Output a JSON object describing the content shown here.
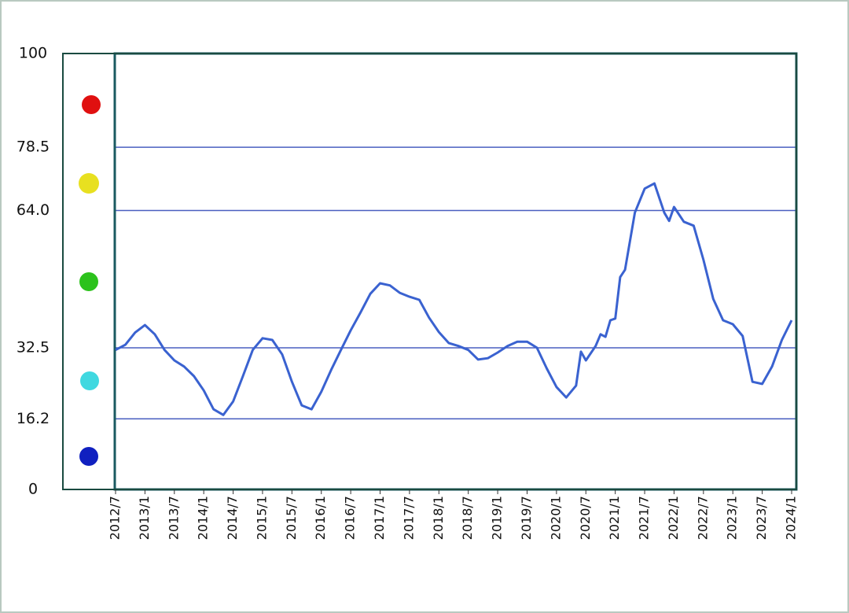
{
  "chart_data": {
    "type": "line",
    "x": [
      "2012/7",
      "2012/9",
      "2012/11",
      "2013/1",
      "2013/3",
      "2013/5",
      "2013/7",
      "2013/9",
      "2013/11",
      "2014/1",
      "2014/3",
      "2014/5",
      "2014/7",
      "2014/9",
      "2014/11",
      "2015/1",
      "2015/3",
      "2015/5",
      "2015/7",
      "2015/9",
      "2015/11",
      "2016/1",
      "2016/3",
      "2016/5",
      "2016/7",
      "2016/9",
      "2016/11",
      "2017/1",
      "2017/3",
      "2017/5",
      "2017/7",
      "2017/9",
      "2017/11",
      "2018/1",
      "2018/3",
      "2018/5",
      "2018/7",
      "2018/9",
      "2018/11",
      "2019/1",
      "2019/3",
      "2019/5",
      "2019/7",
      "2019/9",
      "2019/11",
      "2020/1",
      "2020/3",
      "2020/5",
      "2020/6",
      "2020/7",
      "2020/9",
      "2020/10",
      "2020/11",
      "2020/12",
      "2021/1",
      "2021/2",
      "2021/3",
      "2021/5",
      "2021/7",
      "2021/9",
      "2021/11",
      "2021/12",
      "2022/1",
      "2022/3",
      "2022/5",
      "2022/7",
      "2022/9",
      "2022/11",
      "2023/1",
      "2023/3",
      "2023/5",
      "2023/7",
      "2023/9",
      "2023/11",
      "2024/1"
    ],
    "series": [
      {
        "color": "#3a62d0",
        "values": [
          32,
          33.2,
          36,
          37.7,
          35.6,
          32,
          29.6,
          28.2,
          26,
          22.7,
          18.4,
          17.1,
          20.2,
          26,
          32,
          34.7,
          34.3,
          31,
          24.7,
          19.3,
          18.4,
          22.4,
          27.4,
          32,
          36.5,
          40.6,
          44.9,
          47.3,
          46.8,
          45.1,
          44.2,
          43.5,
          39.4,
          36.1,
          33.6,
          32.9,
          32,
          29.8,
          30.1,
          31.4,
          32.9,
          33.9,
          33.9,
          32.5,
          27.8,
          23.5,
          21.1,
          23.8,
          31.6,
          29.6,
          32.9,
          35.6,
          35,
          38.8,
          39.2,
          48.7,
          50.4,
          63.5,
          69,
          70.2,
          63.5,
          61.6,
          64.8,
          61.4,
          60.5,
          52.7,
          43.7,
          38.8,
          37.9,
          35.2,
          24.7,
          24.2,
          28.2,
          34.3,
          38.8
        ]
      }
    ],
    "xticks": [
      "2012/7",
      "2013/1",
      "2013/7",
      "2014/1",
      "2014/7",
      "2015/1",
      "2015/7",
      "2016/1",
      "2016/7",
      "2017/1",
      "2017/7",
      "2018/1",
      "2018/7",
      "2019/1",
      "2019/7",
      "2020/1",
      "2020/7",
      "2021/1",
      "2021/7",
      "2022/1",
      "2022/7",
      "2023/1",
      "2023/7",
      "2024/1"
    ],
    "ylim": [
      0,
      100
    ],
    "yticks": [
      0,
      16.2,
      32.5,
      {
        "value": 64,
        "label": "64.0"
      },
      78.5,
      100
    ],
    "grid": true
  }
}
